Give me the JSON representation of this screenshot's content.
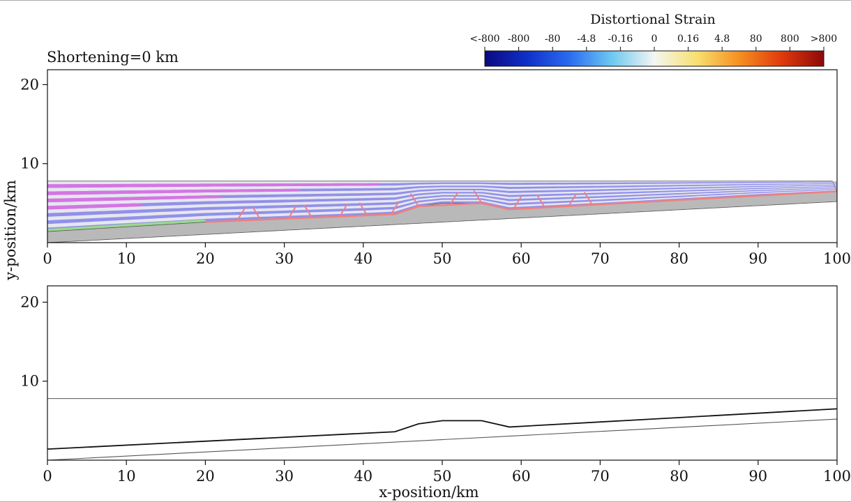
{
  "shortening_label": "Shortening=0 km",
  "colorbar": {
    "title": "Distortional Strain",
    "tick_labels": [
      "<-800",
      "-800",
      "-80",
      "-4.8",
      "-0.16",
      "0",
      "0.16",
      "4.8",
      "80",
      "800",
      ">800"
    ],
    "colors": [
      "#0a0a80",
      "#1030c8",
      "#2a6cf0",
      "#6ec8f0",
      "#f4f6f2",
      "#f8e070",
      "#f59020",
      "#e03a0c",
      "#8c0a0a"
    ]
  },
  "axes": {
    "xlabel": "x-position/km",
    "ylabel": "y-position/km"
  },
  "chart_data": [
    {
      "type": "area",
      "panel": "strain-model",
      "xlim": [
        0,
        100
      ],
      "ylim": [
        0,
        22
      ],
      "xticks": [
        0,
        10,
        20,
        30,
        40,
        50,
        60,
        70,
        80,
        90,
        100
      ],
      "yticks": [
        10,
        20
      ],
      "grid": false,
      "series": [
        {
          "role": "basement",
          "color": "#b9b9b9",
          "bottom": [
            [
              0,
              0
            ],
            [
              100,
              5.2
            ]
          ],
          "top": [
            [
              0,
              1.4
            ],
            [
              20,
              2.6
            ],
            [
              30,
              3.0
            ],
            [
              40,
              3.4
            ],
            [
              44,
              3.6
            ],
            [
              47,
              4.6
            ],
            [
              50,
              5.0
            ],
            [
              55,
              5.0
            ],
            [
              58.5,
              4.2
            ],
            [
              70,
              4.8
            ],
            [
              80,
              5.4
            ],
            [
              90,
              6.0
            ],
            [
              100,
              6.5
            ]
          ]
        },
        {
          "role": "sediment-top",
          "color": "#8a8a8a",
          "line": [
            [
              0,
              7.8
            ],
            [
              100,
              7.8
            ]
          ]
        },
        {
          "role": "decollement",
          "color": "#f08080",
          "line": [
            [
              20,
              2.6
            ],
            [
              44,
              3.6
            ],
            [
              47,
              4.6
            ],
            [
              55,
              5.0
            ],
            [
              58.5,
              4.2
            ],
            [
              100,
              6.5
            ]
          ]
        }
      ],
      "layer_colors": [
        "#8c8ce8",
        "#e6e6f0",
        "#e070e0",
        "#9cd890",
        "#c86fd8"
      ]
    },
    {
      "type": "line",
      "panel": "outline",
      "xlim": [
        0,
        100
      ],
      "ylim": [
        0,
        22
      ],
      "xticks": [
        0,
        10,
        20,
        30,
        40,
        50,
        60,
        70,
        80,
        90,
        100
      ],
      "yticks": [
        10,
        20
      ],
      "grid": false,
      "series": [
        {
          "role": "surface",
          "color": "#555555",
          "values": [
            [
              0,
              7.8
            ],
            [
              100,
              7.8
            ]
          ]
        },
        {
          "role": "interface",
          "color": "#111111",
          "values": [
            [
              0,
              1.4
            ],
            [
              44,
              3.6
            ],
            [
              47,
              4.6
            ],
            [
              50,
              5.0
            ],
            [
              55,
              5.0
            ],
            [
              58.5,
              4.2
            ],
            [
              100,
              6.5
            ]
          ]
        },
        {
          "role": "base",
          "color": "#555555",
          "values": [
            [
              0,
              0
            ],
            [
              100,
              5.2
            ]
          ]
        }
      ]
    }
  ]
}
